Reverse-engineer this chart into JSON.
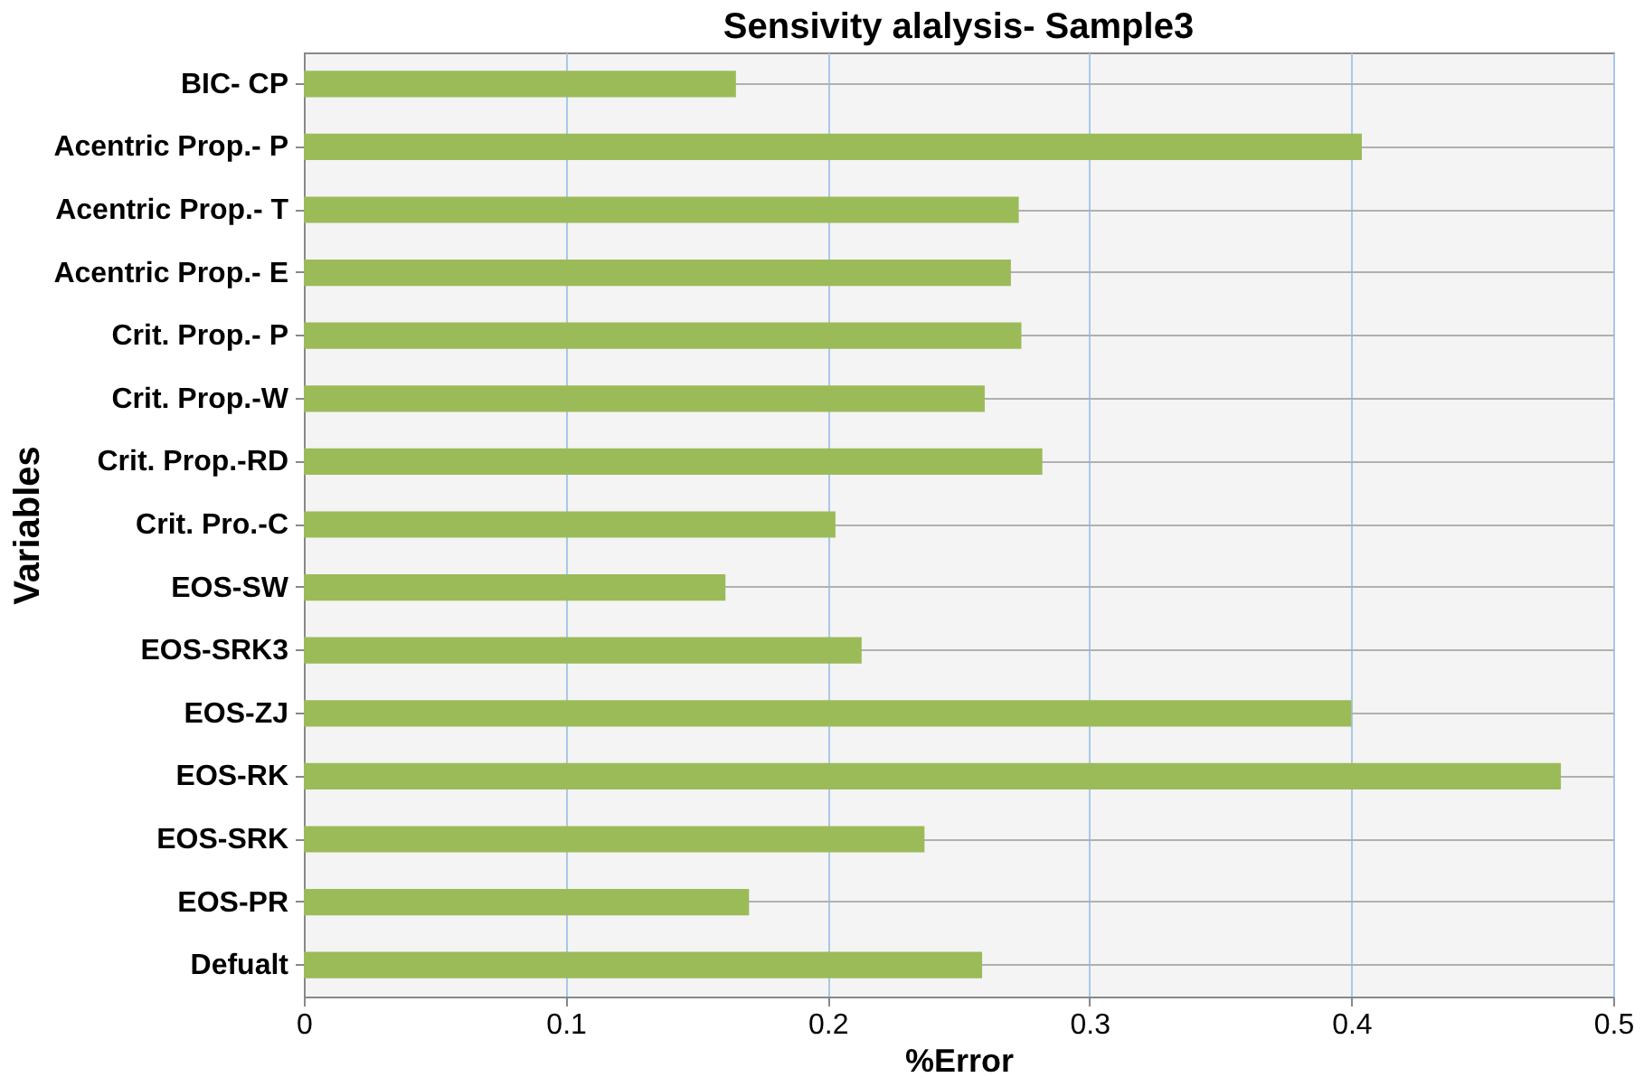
{
  "chart_data": {
    "type": "bar",
    "orientation": "horizontal",
    "title": "Sensivity alalysis- Sample3",
    "xlabel": "%Error",
    "ylabel": "Variables",
    "categories": [
      "BIC- CP",
      "Acentric Prop.- P",
      "Acentric Prop.- T",
      "Acentric Prop.- E",
      "Crit. Prop.- P",
      "Crit. Prop.-W",
      "Crit. Prop.-RD",
      "Crit. Pro.-C",
      "EOS-SW",
      "EOS-SRK3",
      "EOS-ZJ",
      "EOS-RK",
      "EOS-SRK",
      "EOS-PR",
      "Defualt"
    ],
    "values": [
      0.165,
      0.404,
      0.273,
      0.27,
      0.274,
      0.26,
      0.282,
      0.203,
      0.161,
      0.213,
      0.4,
      0.48,
      0.237,
      0.17,
      0.259
    ],
    "color": "#9bbb59",
    "xlim": [
      0,
      0.5
    ],
    "xticks": [
      0,
      0.1,
      0.2,
      0.3,
      0.4,
      0.5
    ],
    "grid": true
  }
}
